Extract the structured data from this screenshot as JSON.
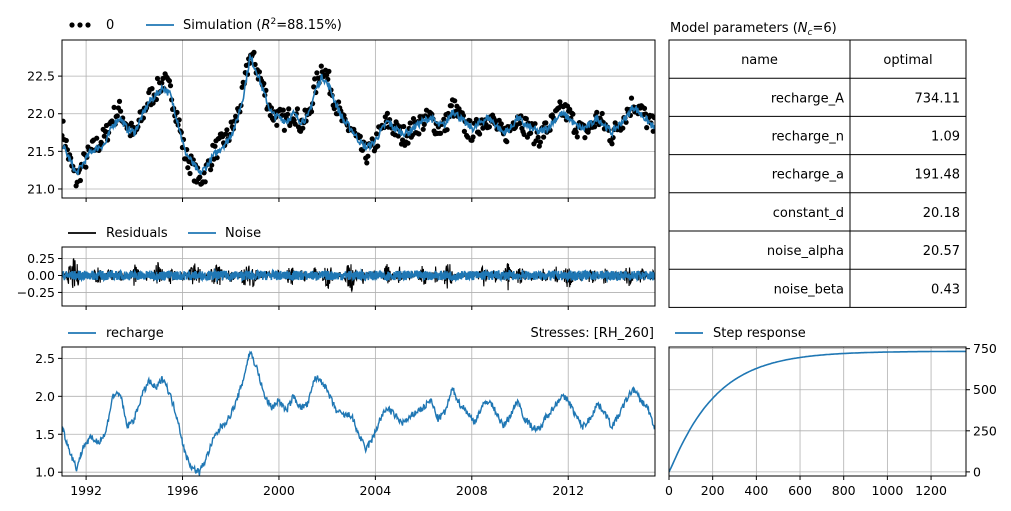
{
  "chart_data": [
    {
      "type": "scatter+line",
      "panel": "fit",
      "legend": {
        "placement": "top-left",
        "observed": "0",
        "simulation": "Simulation (",
        "simulation_r2": "R",
        "simulation_sup": "2",
        "simulation_tail": "=88.15%)"
      },
      "xlim": [
        1991.0,
        2015.6
      ],
      "ylim": [
        20.88,
        22.98
      ],
      "yticks": [
        21.0,
        21.5,
        22.0,
        22.5
      ],
      "ytick_labels": [
        "21.0",
        "21.5",
        "22.0",
        "22.5"
      ],
      "grid": true,
      "series": [
        {
          "name": "0",
          "kind": "observed",
          "x": [
            1991.0,
            1991.3,
            1991.6,
            1991.9,
            1992.2,
            1992.5,
            1992.8,
            1993.1,
            1993.4,
            1993.7,
            1994.0,
            1994.3,
            1994.6,
            1994.9,
            1995.2,
            1995.5,
            1995.8,
            1996.1,
            1996.4,
            1996.7,
            1997.0,
            1997.3,
            1997.6,
            1997.9,
            1998.2,
            1998.5,
            1998.8,
            1999.1,
            1999.4,
            1999.7,
            2000.0,
            2000.3,
            2000.6,
            2000.9,
            2001.2,
            2001.5,
            2001.8,
            2002.1,
            2002.4,
            2002.7,
            2003.0,
            2003.3,
            2003.6,
            2003.9,
            2004.2,
            2004.5,
            2004.8,
            2005.1,
            2005.4,
            2005.7,
            2006.0,
            2006.3,
            2006.6,
            2006.9,
            2007.2,
            2007.5,
            2007.8,
            2008.1,
            2008.4,
            2008.7,
            2009.0,
            2009.3,
            2009.6,
            2009.9,
            2010.2,
            2010.5,
            2010.8,
            2011.1,
            2011.4,
            2011.7,
            2012.0,
            2012.3,
            2012.6,
            2012.9,
            2013.2,
            2013.5,
            2013.8,
            2014.1,
            2014.4,
            2014.7,
            2015.0,
            2015.3,
            2015.6
          ],
          "values": [
            21.85,
            21.4,
            21.1,
            21.35,
            21.5,
            21.6,
            21.7,
            21.95,
            22.05,
            21.85,
            21.7,
            21.95,
            22.2,
            22.3,
            22.45,
            22.3,
            21.95,
            21.45,
            21.3,
            21.1,
            21.25,
            21.5,
            21.6,
            21.7,
            21.9,
            22.25,
            22.8,
            22.6,
            22.3,
            22.0,
            21.95,
            21.9,
            22.05,
            21.85,
            21.95,
            22.35,
            22.65,
            22.4,
            22.1,
            21.85,
            21.8,
            21.6,
            21.45,
            21.55,
            21.75,
            21.9,
            21.8,
            21.7,
            21.75,
            21.85,
            21.9,
            21.95,
            21.8,
            21.85,
            22.1,
            21.95,
            21.8,
            21.75,
            21.9,
            21.95,
            21.85,
            21.7,
            21.8,
            22.0,
            21.85,
            21.75,
            21.7,
            21.8,
            21.9,
            22.05,
            22.0,
            21.85,
            21.75,
            21.8,
            21.95,
            21.85,
            21.7,
            21.85,
            22.0,
            22.15,
            22.05,
            21.9,
            21.8
          ]
        },
        {
          "name": "Simulation",
          "kind": "simulated",
          "x": [
            1991.0,
            1991.3,
            1991.6,
            1991.9,
            1992.2,
            1992.5,
            1992.8,
            1993.1,
            1993.4,
            1993.7,
            1994.0,
            1994.3,
            1994.6,
            1994.9,
            1995.2,
            1995.5,
            1995.8,
            1996.1,
            1996.4,
            1996.7,
            1997.0,
            1997.3,
            1997.6,
            1997.9,
            1998.2,
            1998.5,
            1998.8,
            1999.1,
            1999.4,
            1999.7,
            2000.0,
            2000.3,
            2000.6,
            2000.9,
            2001.2,
            2001.5,
            2001.8,
            2002.1,
            2002.4,
            2002.7,
            2003.0,
            2003.3,
            2003.6,
            2003.9,
            2004.2,
            2004.5,
            2004.8,
            2005.1,
            2005.4,
            2005.7,
            2006.0,
            2006.3,
            2006.6,
            2006.9,
            2007.2,
            2007.5,
            2007.8,
            2008.1,
            2008.4,
            2008.7,
            2009.0,
            2009.3,
            2009.6,
            2009.9,
            2010.2,
            2010.5,
            2010.8,
            2011.1,
            2011.4,
            2011.7,
            2012.0,
            2012.3,
            2012.6,
            2012.9,
            2013.2,
            2013.5,
            2013.8,
            2014.1,
            2014.4,
            2014.7,
            2015.0,
            2015.3,
            2015.6
          ],
          "values": [
            21.6,
            21.4,
            21.2,
            21.35,
            21.5,
            21.55,
            21.6,
            21.85,
            21.95,
            21.8,
            21.75,
            21.95,
            22.15,
            22.25,
            22.35,
            22.25,
            21.9,
            21.5,
            21.35,
            21.2,
            21.3,
            21.45,
            21.55,
            21.65,
            21.85,
            22.2,
            22.75,
            22.55,
            22.25,
            22.0,
            21.95,
            21.9,
            22.0,
            21.9,
            21.95,
            22.3,
            22.5,
            22.35,
            22.1,
            21.9,
            21.8,
            21.65,
            21.55,
            21.6,
            21.75,
            21.9,
            21.8,
            21.75,
            21.75,
            21.85,
            21.9,
            21.95,
            21.85,
            21.85,
            22.05,
            21.95,
            21.85,
            21.8,
            21.9,
            21.95,
            21.85,
            21.75,
            21.8,
            21.95,
            21.85,
            21.8,
            21.75,
            21.8,
            21.9,
            22.0,
            21.95,
            21.85,
            21.8,
            21.85,
            21.95,
            21.85,
            21.75,
            21.85,
            21.95,
            22.1,
            22.0,
            21.9,
            21.8
          ]
        }
      ]
    },
    {
      "type": "line",
      "panel": "residuals",
      "legend": {
        "placement": "top-left",
        "residuals": "Residuals",
        "noise": "Noise"
      },
      "xlim": [
        1991.0,
        2015.6
      ],
      "ylim": [
        -0.45,
        0.42
      ],
      "yticks": [
        0.25,
        0.0,
        -0.25
      ],
      "ytick_labels": [
        "0.25",
        "0.00",
        "−0.25"
      ],
      "grid": true,
      "series": [
        {
          "name": "Residuals",
          "x": [
            1991.0,
            1991.5,
            1992.0,
            1992.5,
            1993.0,
            1993.5,
            1994.0,
            1994.5,
            1995.0,
            1995.5,
            1996.0,
            1996.5,
            1997.0,
            1997.5,
            1998.0,
            1998.5,
            1999.0,
            1999.5,
            2000.0,
            2000.5,
            2001.0,
            2001.5,
            2002.0,
            2002.5,
            2003.0,
            2003.5,
            2004.0,
            2004.5,
            2005.0,
            2005.5,
            2006.0,
            2006.5,
            2007.0,
            2007.5,
            2008.0,
            2008.5,
            2009.0,
            2009.5,
            2010.0,
            2010.5,
            2011.0,
            2011.5,
            2012.0,
            2012.5,
            2013.0,
            2013.5,
            2014.0,
            2014.5,
            2015.0,
            2015.5
          ],
          "values": [
            0.05,
            -0.3,
            0.1,
            -0.2,
            0.15,
            -0.15,
            0.2,
            -0.1,
            0.25,
            -0.2,
            0.1,
            -0.25,
            0.05,
            0.2,
            -0.15,
            0.15,
            0.2,
            -0.1,
            0.1,
            -0.2,
            0.15,
            -0.15,
            0.25,
            -0.1,
            0.3,
            -0.15,
            0.1,
            -0.2,
            0.15,
            -0.1,
            0.2,
            -0.15,
            0.25,
            -0.1,
            0.1,
            -0.2,
            0.15,
            -0.25,
            0.2,
            -0.1,
            0.15,
            -0.15,
            0.25,
            -0.1,
            0.2,
            -0.15,
            0.1,
            -0.2,
            0.15,
            -0.1
          ]
        },
        {
          "name": "Noise",
          "x": [
            1991.0,
            1991.5,
            1992.0,
            1992.5,
            1993.0,
            1993.5,
            1994.0,
            1994.5,
            1995.0,
            1995.5,
            1996.0,
            1996.5,
            1997.0,
            1997.5,
            1998.0,
            1998.5,
            1999.0,
            1999.5,
            2000.0,
            2000.5,
            2001.0,
            2001.5,
            2002.0,
            2002.5,
            2003.0,
            2003.5,
            2004.0,
            2004.5,
            2005.0,
            2005.5,
            2006.0,
            2006.5,
            2007.0,
            2007.5,
            2008.0,
            2008.5,
            2009.0,
            2009.5,
            2010.0,
            2010.5,
            2011.0,
            2011.5,
            2012.0,
            2012.5,
            2013.0,
            2013.5,
            2014.0,
            2014.5,
            2015.0,
            2015.5
          ],
          "values": [
            0.04,
            -0.06,
            0.05,
            -0.05,
            0.06,
            -0.04,
            0.05,
            -0.06,
            0.04,
            -0.05,
            0.06,
            -0.05,
            0.04,
            0.05,
            -0.06,
            0.05,
            0.06,
            -0.04,
            0.05,
            -0.06,
            0.04,
            -0.05,
            0.06,
            -0.04,
            0.05,
            -0.06,
            0.04,
            -0.05,
            0.06,
            -0.04,
            0.05,
            -0.05,
            0.06,
            -0.04,
            0.05,
            -0.06,
            0.04,
            -0.05,
            0.06,
            -0.04,
            0.05,
            -0.05,
            0.06,
            -0.04,
            0.05,
            -0.06,
            0.04,
            -0.05,
            0.06,
            -0.04
          ]
        }
      ]
    },
    {
      "type": "line",
      "panel": "stresses",
      "legend": {
        "placement": "top-left",
        "recharge": "recharge"
      },
      "title_right": "Stresses: [RH_260]",
      "xlim": [
        1991.0,
        2015.6
      ],
      "ylim": [
        0.95,
        2.65
      ],
      "yticks": [
        1.0,
        1.5,
        2.0,
        2.5
      ],
      "ytick_labels": [
        "1.0",
        "1.5",
        "2.0",
        "2.5"
      ],
      "xticks": [
        1992,
        1996,
        2000,
        2004,
        2008,
        2012
      ],
      "xtick_labels": [
        "1992",
        "1996",
        "2000",
        "2004",
        "2008",
        "2012"
      ],
      "grid": true,
      "series": [
        {
          "name": "recharge",
          "x": [
            1991.0,
            1991.3,
            1991.6,
            1991.9,
            1992.2,
            1992.5,
            1992.8,
            1993.1,
            1993.4,
            1993.7,
            1994.0,
            1994.3,
            1994.6,
            1994.9,
            1995.2,
            1995.5,
            1995.8,
            1996.1,
            1996.4,
            1996.7,
            1997.0,
            1997.3,
            1997.6,
            1997.9,
            1998.2,
            1998.5,
            1998.8,
            1999.1,
            1999.4,
            1999.7,
            2000.0,
            2000.3,
            2000.6,
            2000.9,
            2001.2,
            2001.5,
            2001.8,
            2002.1,
            2002.4,
            2002.7,
            2003.0,
            2003.3,
            2003.6,
            2003.9,
            2004.2,
            2004.5,
            2004.8,
            2005.1,
            2005.4,
            2005.7,
            2006.0,
            2006.3,
            2006.6,
            2006.9,
            2007.2,
            2007.5,
            2007.8,
            2008.1,
            2008.4,
            2008.7,
            2009.0,
            2009.3,
            2009.6,
            2009.9,
            2010.2,
            2010.5,
            2010.8,
            2011.1,
            2011.4,
            2011.7,
            2012.0,
            2012.3,
            2012.6,
            2012.9,
            2013.2,
            2013.5,
            2013.8,
            2014.1,
            2014.4,
            2014.7,
            2015.0,
            2015.3,
            2015.6
          ],
          "values": [
            1.6,
            1.3,
            1.05,
            1.35,
            1.45,
            1.4,
            1.5,
            2.0,
            2.05,
            1.6,
            1.7,
            2.0,
            2.2,
            2.1,
            2.25,
            2.0,
            1.7,
            1.25,
            1.05,
            1.0,
            1.2,
            1.45,
            1.6,
            1.7,
            1.9,
            2.2,
            2.6,
            2.35,
            2.0,
            1.85,
            1.95,
            1.8,
            2.0,
            1.85,
            1.9,
            2.25,
            2.2,
            2.0,
            1.8,
            1.75,
            1.75,
            1.5,
            1.3,
            1.45,
            1.7,
            1.85,
            1.75,
            1.65,
            1.7,
            1.8,
            1.85,
            1.95,
            1.7,
            1.8,
            2.1,
            1.9,
            1.8,
            1.65,
            1.85,
            1.95,
            1.8,
            1.6,
            1.75,
            1.95,
            1.7,
            1.6,
            1.55,
            1.75,
            1.85,
            2.0,
            1.95,
            1.75,
            1.6,
            1.7,
            1.9,
            1.8,
            1.6,
            1.75,
            1.95,
            2.1,
            1.95,
            1.85,
            1.55
          ]
        }
      ]
    },
    {
      "type": "line",
      "panel": "step_response",
      "legend": {
        "placement": "top-left",
        "step": "Step response"
      },
      "xlim": [
        0,
        1360
      ],
      "ylim": [
        -25,
        760
      ],
      "xticks": [
        0,
        200,
        400,
        600,
        800,
        1000,
        1200
      ],
      "xtick_labels": [
        "0",
        "200",
        "400",
        "600",
        "800",
        "1000",
        "1200"
      ],
      "yticks": [
        0,
        250,
        500,
        750
      ],
      "ytick_labels": [
        "0",
        "250",
        "500",
        "750"
      ],
      "yaxis_side": "right",
      "grid": true,
      "series": [
        {
          "name": "Step response",
          "A": 734.11,
          "n": 1.09,
          "a": 191.48
        }
      ]
    }
  ],
  "table": {
    "title_pre": "Model parameters (",
    "title_n": "N",
    "title_sub": "c",
    "title_post": "=6)",
    "headers": [
      "name",
      "optimal"
    ],
    "rows": [
      [
        "recharge_A",
        "734.11"
      ],
      [
        "recharge_n",
        "1.09"
      ],
      [
        "recharge_a",
        "191.48"
      ],
      [
        "constant_d",
        "20.18"
      ],
      [
        "noise_alpha",
        "20.57"
      ],
      [
        "noise_beta",
        "0.43"
      ]
    ]
  },
  "colors": {
    "observed": "#000000",
    "simulated": "#1f77b4",
    "grid": "#b0b0b0"
  }
}
